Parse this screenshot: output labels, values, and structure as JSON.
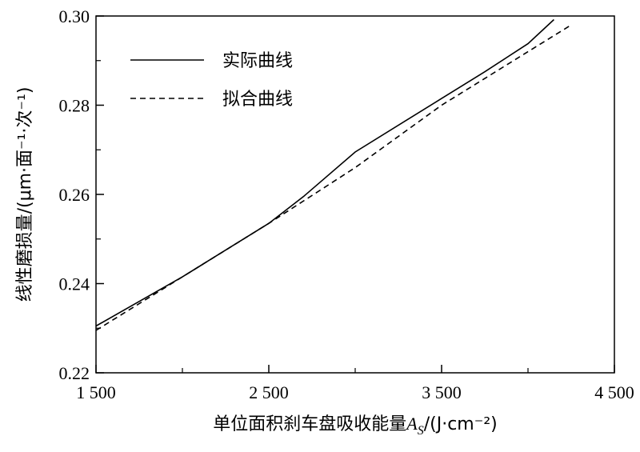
{
  "chart_data": {
    "type": "line",
    "xlabel": "单位面积刹车盘吸收能量A_S/(J·cm⁻²)",
    "ylabel": "线性磨损量/(μm·面⁻¹·次⁻¹)",
    "xlabel_parts": {
      "text": "单位面积刹车盘吸收能量",
      "symbol": "A",
      "subscript": "S",
      "unit": "/(J·cm⁻²)"
    },
    "ylabel_text": "线性磨损量/(μm·面⁻¹·次⁻¹)",
    "xlim": [
      1500,
      4500
    ],
    "ylim": [
      0.22,
      0.3
    ],
    "x_ticks": [
      1500,
      2500,
      3500,
      4500
    ],
    "x_tick_labels": [
      "1 500",
      "2 500",
      "3 500",
      "4 500"
    ],
    "x_minor_ticks": [
      2000,
      3000,
      4000
    ],
    "y_ticks": [
      0.22,
      0.24,
      0.26,
      0.28,
      0.3
    ],
    "y_tick_labels": [
      "0.22",
      "0.24",
      "0.26",
      "0.28",
      "0.30"
    ],
    "y_minor_ticks": [
      0.23,
      0.25,
      0.27,
      0.29
    ],
    "grid": false,
    "legend_position": "top-left",
    "series": [
      {
        "name": "实际曲线",
        "style": "solid",
        "color": "#000000",
        "x": [
          1500,
          2000,
          2500,
          2700,
          3000,
          3500,
          3750,
          4000,
          4150
        ],
        "y": [
          0.2305,
          0.2415,
          0.2535,
          0.2595,
          0.2695,
          0.2815,
          0.2875,
          0.2938,
          0.2992
        ]
      },
      {
        "name": "拟合曲线",
        "style": "dashed",
        "color": "#000000",
        "x": [
          1500,
          2000,
          2500,
          3000,
          3500,
          4000,
          4250
        ],
        "y": [
          0.2295,
          0.2415,
          0.2535,
          0.266,
          0.28,
          0.292,
          0.298
        ]
      }
    ]
  }
}
